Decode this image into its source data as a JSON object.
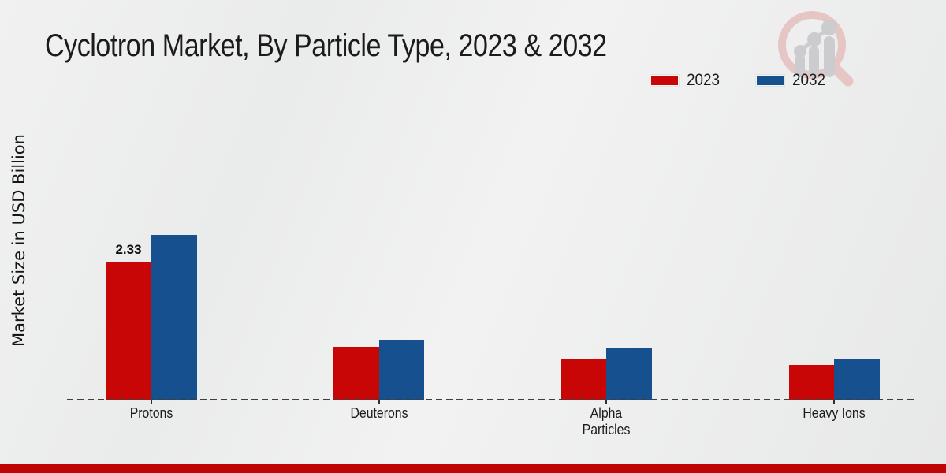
{
  "page": {
    "title": "Cyclotron Market, By Particle Type, 2023 & 2032"
  },
  "branding": {
    "logo_icon": "magnifier-bar-chart-icon",
    "logo_ring_color": "#e5bfbf",
    "logo_bar_color": "#c7c7ca"
  },
  "footer": {
    "accent_color": "#c00404"
  },
  "chart_data": {
    "type": "bar",
    "title": "Cyclotron Market, By Particle Type, 2023 & 2032",
    "xlabel": "",
    "ylabel": "Market Size in USD Billion",
    "categories": [
      "Protons",
      "Deuterons",
      "Alpha Particles",
      "Heavy Ions"
    ],
    "series": [
      {
        "name": "2023",
        "color": "#c90606",
        "values": [
          2.33,
          0.9,
          0.69,
          0.6
        ]
      },
      {
        "name": "2032",
        "color": "#16508e",
        "values": [
          2.78,
          1.02,
          0.87,
          0.7
        ]
      }
    ],
    "annotations": [
      {
        "series": 0,
        "category": 0,
        "text": "2.33"
      }
    ],
    "ylim": [
      0,
      3.0
    ],
    "grid": false,
    "y_tick_labels_shown": false,
    "legend_position": "top-right",
    "axis_line_style": "dashed"
  }
}
